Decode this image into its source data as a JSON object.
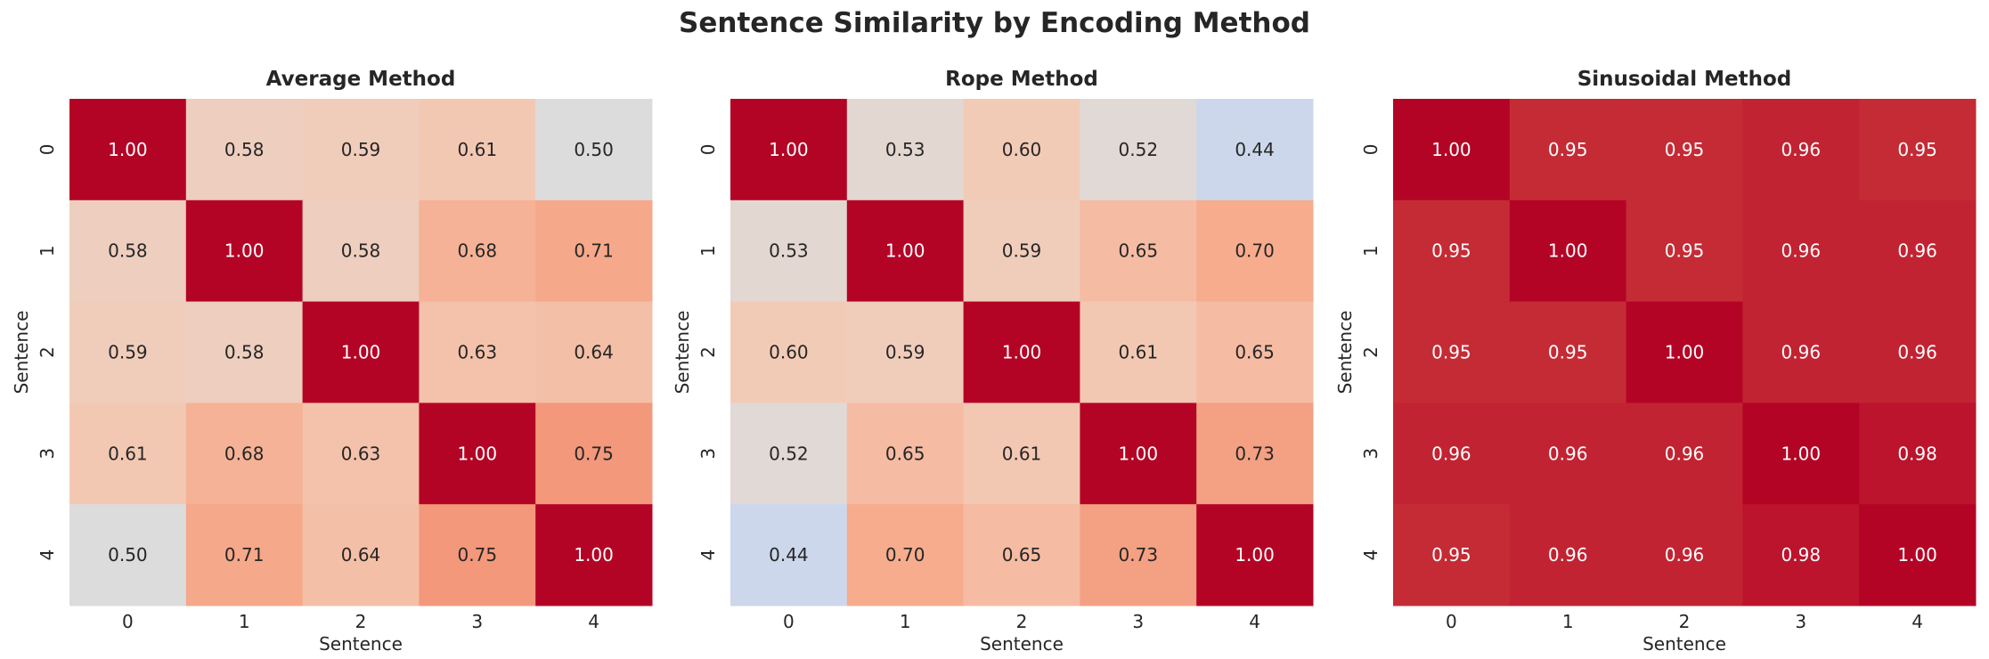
{
  "title": "Sentence Similarity by Encoding Method",
  "chart_data": [
    {
      "type": "heatmap",
      "title": "Average Method",
      "xlabel": "Sentence",
      "ylabel": "Sentence",
      "x_ticks": [
        "0",
        "1",
        "2",
        "3",
        "4"
      ],
      "y_ticks": [
        "0",
        "1",
        "2",
        "3",
        "4"
      ],
      "colormap": "coolwarm",
      "vlim": [
        0,
        1
      ],
      "colorbar": false,
      "values": [
        [
          1.0,
          0.58,
          0.59,
          0.61,
          0.5
        ],
        [
          0.58,
          1.0,
          0.58,
          0.68,
          0.71
        ],
        [
          0.59,
          0.58,
          1.0,
          0.63,
          0.64
        ],
        [
          0.61,
          0.68,
          0.63,
          1.0,
          0.75
        ],
        [
          0.5,
          0.71,
          0.64,
          0.75,
          1.0
        ]
      ]
    },
    {
      "type": "heatmap",
      "title": "Rope Method",
      "xlabel": "Sentence",
      "ylabel": "Sentence",
      "x_ticks": [
        "0",
        "1",
        "2",
        "3",
        "4"
      ],
      "y_ticks": [
        "0",
        "1",
        "2",
        "3",
        "4"
      ],
      "colormap": "coolwarm",
      "vlim": [
        0,
        1
      ],
      "colorbar": false,
      "values": [
        [
          1.0,
          0.53,
          0.6,
          0.52,
          0.44
        ],
        [
          0.53,
          1.0,
          0.59,
          0.65,
          0.7
        ],
        [
          0.6,
          0.59,
          1.0,
          0.61,
          0.65
        ],
        [
          0.52,
          0.65,
          0.61,
          1.0,
          0.73
        ],
        [
          0.44,
          0.7,
          0.65,
          0.73,
          1.0
        ]
      ]
    },
    {
      "type": "heatmap",
      "title": "Sinusoidal Method",
      "xlabel": "Sentence",
      "ylabel": "Sentence",
      "x_ticks": [
        "0",
        "1",
        "2",
        "3",
        "4"
      ],
      "y_ticks": [
        "0",
        "1",
        "2",
        "3",
        "4"
      ],
      "colormap": "coolwarm",
      "vlim": [
        0,
        1
      ],
      "colorbar": false,
      "values": [
        [
          1.0,
          0.95,
          0.95,
          0.96,
          0.95
        ],
        [
          0.95,
          1.0,
          0.95,
          0.96,
          0.96
        ],
        [
          0.95,
          0.95,
          1.0,
          0.96,
          0.96
        ],
        [
          0.96,
          0.96,
          0.96,
          1.0,
          0.98
        ],
        [
          0.95,
          0.96,
          0.96,
          0.98,
          1.0
        ]
      ]
    }
  ]
}
